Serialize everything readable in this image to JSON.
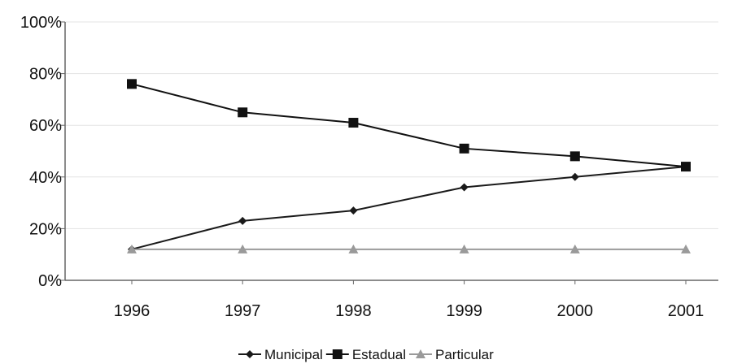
{
  "chart_data": {
    "type": "line",
    "title": "",
    "xlabel": "",
    "ylabel": "",
    "categories": [
      "1996",
      "1997",
      "1998",
      "1999",
      "2000",
      "2001"
    ],
    "ylim": [
      0,
      100
    ],
    "yticks": [
      "0%",
      "20%",
      "40%",
      "60%",
      "80%",
      "100%"
    ],
    "ytick_values": [
      0,
      20,
      40,
      60,
      80,
      100
    ],
    "grid": true,
    "legend_position": "bottom",
    "series": [
      {
        "name": "Municipal",
        "values": [
          12,
          23,
          27,
          36,
          40,
          44
        ],
        "color": "#1a1a1a",
        "marker": "diamond"
      },
      {
        "name": "Estadual",
        "values": [
          76,
          65,
          61,
          51,
          48,
          44
        ],
        "color": "#111111",
        "marker": "square"
      },
      {
        "name": "Particular",
        "values": [
          12,
          12,
          12,
          12,
          12,
          12
        ],
        "color": "#9a9a9a",
        "marker": "triangle"
      }
    ]
  }
}
